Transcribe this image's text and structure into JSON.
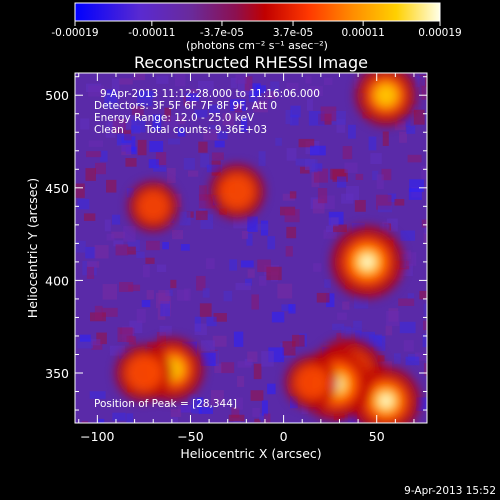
{
  "chart_data": {
    "type": "heatmap",
    "title": "Reconstructed RHESSI Image",
    "xlabel": "Heliocentric X (arcsec)",
    "ylabel": "Heliocentric Y (arcsec)",
    "xlim": [
      -112,
      77
    ],
    "ylim": [
      323,
      512
    ],
    "x_ticks": [
      -100,
      -50,
      0,
      50
    ],
    "y_ticks": [
      350,
      400,
      450,
      500
    ],
    "colorbar": {
      "range": [
        -0.00019,
        0.00019
      ],
      "ticks": [
        -0.00019,
        -0.00011,
        -3.7e-05,
        3.7e-05,
        0.00011,
        0.00019
      ],
      "tick_labels": [
        "-0.00019",
        "-0.00011",
        "-3.7e-05",
        "3.7e-05",
        "0.00011",
        "0.00019"
      ],
      "unit_label": "(photons cm⁻² s⁻¹ asec⁻²)",
      "colors": [
        "#0000ff",
        "#6a2bb8",
        "#8a1870",
        "#c00000",
        "#ff4500",
        "#ff9a00",
        "#ffd000",
        "#ffffe0"
      ]
    },
    "annotations": {
      "time_range": "9-Apr-2013 11:12:28.000 to 11:16:06.000",
      "detectors": "Detectors: 3F 5F 6F 7F 8F 9F, Att 0",
      "energy_range": "Energy Range: 12.0 - 25.0 keV",
      "method": "Clean",
      "total_counts": "Total counts: 9.36E+03",
      "peak_position": "Position of Peak = [28,344]"
    },
    "sources": [
      {
        "x": 45,
        "y": 410,
        "intensity": 1.0
      },
      {
        "x": 35,
        "y": 350,
        "intensity": 0.95
      },
      {
        "x": 55,
        "y": 335,
        "intensity": 0.9
      },
      {
        "x": 28,
        "y": 344,
        "intensity": 1.0
      },
      {
        "x": 55,
        "y": 500,
        "intensity": 0.75
      },
      {
        "x": -60,
        "y": 352,
        "intensity": 0.8
      },
      {
        "x": -75,
        "y": 350,
        "intensity": 0.65
      },
      {
        "x": -25,
        "y": 448,
        "intensity": 0.6
      },
      {
        "x": -70,
        "y": 440,
        "intensity": 0.5
      },
      {
        "x": 15,
        "y": 345,
        "intensity": 0.55
      }
    ]
  },
  "footer": {
    "date": "9-Apr-2013 15:52"
  }
}
